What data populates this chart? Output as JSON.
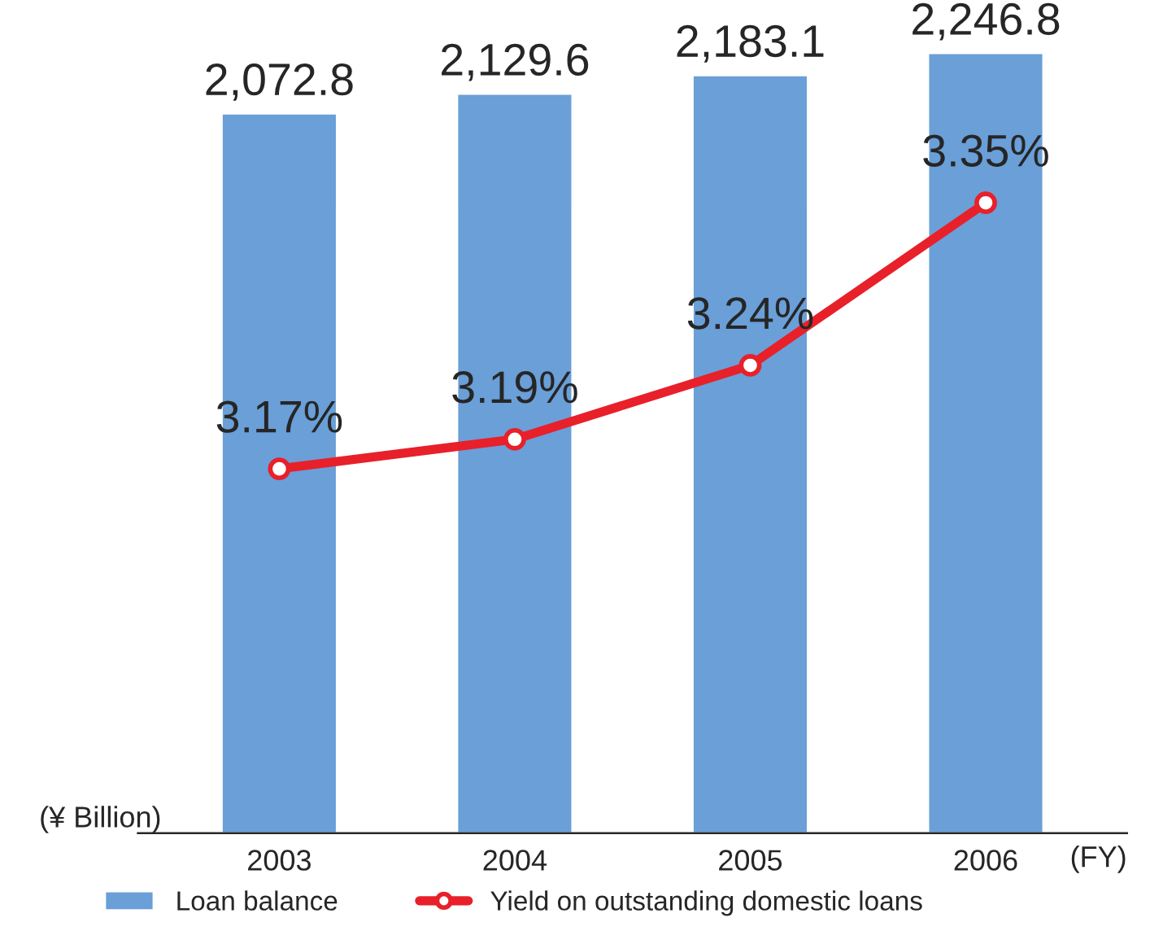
{
  "chart_data": {
    "type": "bar",
    "categories": [
      "2003",
      "2004",
      "2005",
      "2006"
    ],
    "ylabel": "(¥ Billion)",
    "xlabel": "(FY)",
    "series": [
      {
        "name": "Loan balance",
        "color": "#6a9fd8",
        "values": [
          2072.8,
          2129.6,
          2183.1,
          2246.8
        ],
        "value_labels": [
          "2,072.8",
          "2,129.6",
          "2,183.1",
          "2,246.8"
        ]
      },
      {
        "name": "Yield on outstanding domestic loans",
        "type": "line",
        "axis": "y2",
        "color": "#e8202a",
        "marker": "circle",
        "line_style": "solid",
        "values": [
          3.17,
          3.19,
          3.24,
          3.35
        ],
        "value_labels": [
          "3.17%",
          "3.19%",
          "3.24%",
          "3.35%"
        ]
      }
    ],
    "tick_labels": "x",
    "grid": false,
    "legend": "bottom left"
  }
}
